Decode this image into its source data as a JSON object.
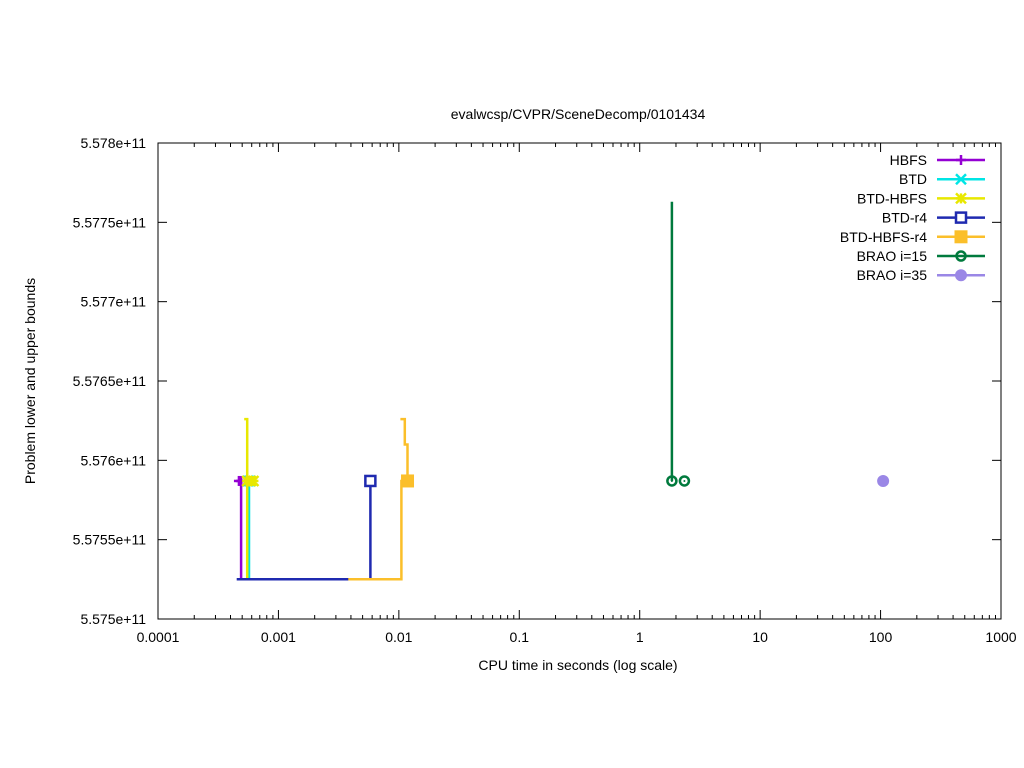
{
  "chart_data": {
    "type": "line",
    "title": "evalwcsp/CVPR/SceneDecomp/0101434",
    "xlabel": "CPU time in seconds (log scale)",
    "ylabel": "Problem lower and upper bounds",
    "x_scale": "log",
    "xlim": [
      0.0001,
      1000
    ],
    "ylim": [
      557500000000,
      557800000000
    ],
    "x_ticks": [
      {
        "value": 0.0001,
        "label": "0.0001"
      },
      {
        "value": 0.001,
        "label": "0.001"
      },
      {
        "value": 0.01,
        "label": "0.01"
      },
      {
        "value": 0.1,
        "label": "0.1"
      },
      {
        "value": 1,
        "label": "1"
      },
      {
        "value": 10,
        "label": "10"
      },
      {
        "value": 100,
        "label": "100"
      },
      {
        "value": 1000,
        "label": "1000"
      }
    ],
    "y_ticks": [
      {
        "value": 557500000000,
        "label": "5.575e+11"
      },
      {
        "value": 557550000000,
        "label": "5.5755e+11"
      },
      {
        "value": 557600000000,
        "label": "5.576e+11"
      },
      {
        "value": 557650000000,
        "label": "5.5765e+11"
      },
      {
        "value": 557700000000,
        "label": "5.577e+11"
      },
      {
        "value": 557750000000,
        "label": "5.5775e+11"
      },
      {
        "value": 557800000000,
        "label": "5.578e+11"
      }
    ],
    "grid": false,
    "legend_position": "top-right",
    "series": [
      {
        "name": "HBFS",
        "color": "#9400d3",
        "marker": "plus",
        "lines": [
          [
            [
              0.00047,
              557525000000
            ],
            [
              0.00049,
              557525000000
            ],
            [
              0.00049,
              557587000000
            ]
          ]
        ],
        "points": [
          [
            0.00047,
            557587000000
          ],
          [
            0.00049,
            557587000000
          ]
        ]
      },
      {
        "name": "BTD",
        "color": "#00e5e5",
        "marker": "x",
        "lines": [
          [
            [
              0.00054,
              557525000000
            ],
            [
              0.00057,
              557525000000
            ],
            [
              0.00057,
              557587000000
            ]
          ]
        ],
        "points": [
          [
            0.00056,
            557587000000
          ],
          [
            0.00058,
            557587000000
          ]
        ]
      },
      {
        "name": "BTD-HBFS",
        "color": "#e8e800",
        "marker": "asterisk",
        "lines": [
          [
            [
              0.00055,
              557525000000
            ],
            [
              0.00055,
              557626000000
            ],
            [
              0.00052,
              557626000000
            ]
          ]
        ],
        "points": [
          [
            0.00055,
            557587000000
          ],
          [
            0.00059,
            557587000000
          ],
          [
            0.00062,
            557587000000
          ]
        ]
      },
      {
        "name": "BTD-r4",
        "color": "#1f2ab0",
        "marker": "square-open",
        "lines": [
          [
            [
              0.00045,
              557525000000
            ],
            [
              0.0058,
              557525000000
            ],
            [
              0.0058,
              557587000000
            ]
          ]
        ],
        "points": [
          [
            0.0058,
            557587000000
          ]
        ]
      },
      {
        "name": "BTD-HBFS-r4",
        "color": "#fbbf2a",
        "marker": "square-filled",
        "lines": [
          [
            [
              0.0038,
              557525000000
            ],
            [
              0.0105,
              557525000000
            ],
            [
              0.0105,
              557587000000
            ],
            [
              0.0118,
              557587000000
            ],
            [
              0.0118,
              557610000000
            ],
            [
              0.0112,
              557610000000
            ],
            [
              0.0112,
              557626000000
            ],
            [
              0.0103,
              557626000000
            ]
          ]
        ],
        "points": [
          [
            0.0118,
            557587000000
          ]
        ]
      },
      {
        "name": "BRAO i=15",
        "color": "#007a3d",
        "marker": "circle-open",
        "lines": [
          [
            [
              1.85,
              557587000000
            ],
            [
              1.85,
              557763000000
            ]
          ]
        ],
        "points": [
          [
            1.85,
            557587000000
          ],
          [
            2.35,
            557587000000
          ]
        ]
      },
      {
        "name": "BRAO i=35",
        "color": "#9a87e6",
        "marker": "circle-filled",
        "lines": [],
        "points": [
          [
            105,
            557587000000
          ]
        ]
      }
    ]
  }
}
